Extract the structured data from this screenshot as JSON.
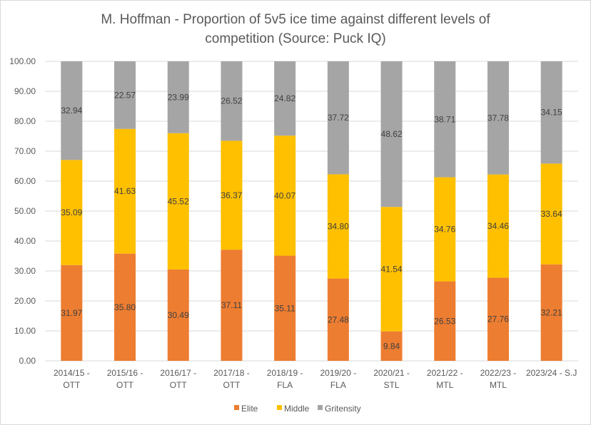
{
  "chart_data": {
    "type": "bar",
    "stacked": true,
    "title": "M. Hoffman - Proportion of 5v5 ice time against different levels of competition (Source: Puck IQ)",
    "title_lines": [
      "M. Hoffman - Proportion of 5v5 ice time against different levels of",
      "competition (Source: Puck IQ)"
    ],
    "xlabel": "",
    "ylabel": "",
    "ylim": [
      0,
      100
    ],
    "yticks": [
      "0.00",
      "10.00",
      "20.00",
      "30.00",
      "40.00",
      "50.00",
      "60.00",
      "70.00",
      "80.00",
      "90.00",
      "100.00"
    ],
    "ytick_values": [
      0,
      10,
      20,
      30,
      40,
      50,
      60,
      70,
      80,
      90,
      100
    ],
    "grid": true,
    "legend_position": "bottom",
    "categories": [
      "2014/15 - OTT",
      "2015/16 - OTT",
      "2016/17 - OTT",
      "2017/18 - OTT",
      "2018/19 - FLA",
      "2019/20 - FLA",
      "2020/21 - STL",
      "2021/22 - MTL",
      "2022/23 - MTL",
      "2023/24 - S.J"
    ],
    "category_lines": [
      [
        "2014/15 -",
        "OTT"
      ],
      [
        "2015/16 -",
        "OTT"
      ],
      [
        "2016/17 -",
        "OTT"
      ],
      [
        "2017/18 -",
        "OTT"
      ],
      [
        "2018/19 -",
        "FLA"
      ],
      [
        "2019/20 -",
        "FLA"
      ],
      [
        "2020/21 -",
        "STL"
      ],
      [
        "2021/22 -",
        "MTL"
      ],
      [
        "2022/23 -",
        "MTL"
      ],
      [
        "2023/24 - S.J",
        ""
      ]
    ],
    "series": [
      {
        "name": "Elite",
        "color": "#ED7D31",
        "values": [
          31.97,
          35.8,
          30.49,
          37.11,
          35.11,
          27.48,
          9.84,
          26.53,
          27.76,
          32.21
        ]
      },
      {
        "name": "Middle",
        "color": "#FFC000",
        "values": [
          35.09,
          41.63,
          45.52,
          36.37,
          40.07,
          34.8,
          41.54,
          34.76,
          34.46,
          33.64
        ]
      },
      {
        "name": "Gritensity",
        "color": "#A5A5A5",
        "values": [
          32.94,
          22.57,
          23.99,
          26.52,
          24.82,
          37.72,
          48.62,
          38.71,
          37.78,
          34.15
        ]
      }
    ]
  }
}
